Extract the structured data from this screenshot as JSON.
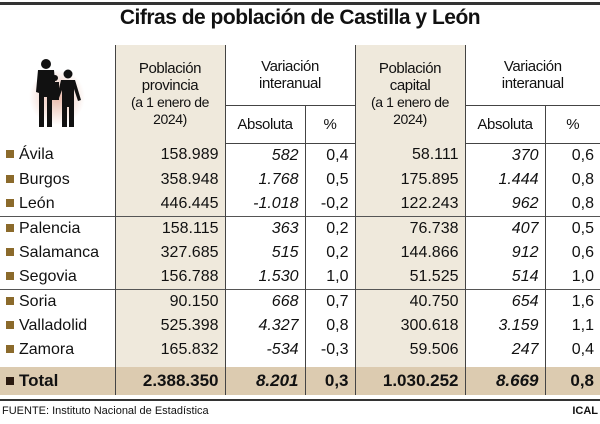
{
  "title": "Cifras de población de Castilla y León",
  "headers": {
    "pop_provincia": "Población provincia",
    "pop_provincia_sub": "(a 1 enero de 2024)",
    "variacion": "Variación interanual",
    "pop_capital": "Población capital",
    "pop_capital_sub": "(a 1 enero de 2024)",
    "absoluta": "Absoluta",
    "pct": "%"
  },
  "chart_data": {
    "type": "table",
    "columns": [
      "Población provincia (a 1 enero de 2024)",
      "Variación interanual Absoluta",
      "Variación interanual %",
      "Población capital (a 1 enero de 2024)",
      "Variación interanual Absoluta",
      "Variación interanual %"
    ],
    "rows": [
      [
        "Ávila",
        "158.989",
        "582",
        "0,4",
        "58.111",
        "370",
        "0,6"
      ],
      [
        "Burgos",
        "358.948",
        "1.768",
        "0,5",
        "175.895",
        "1.444",
        "0,8"
      ],
      [
        "León",
        "446.445",
        "-1.018",
        "-0,2",
        "122.243",
        "962",
        "0,8"
      ],
      [
        "Palencia",
        "158.115",
        "363",
        "0,2",
        "76.738",
        "407",
        "0,5"
      ],
      [
        "Salamanca",
        "327.685",
        "515",
        "0,2",
        "144.866",
        "912",
        "0,6"
      ],
      [
        "Segovia",
        "156.788",
        "1.530",
        "1,0",
        "51.525",
        "514",
        "1,0"
      ],
      [
        "Soria",
        "90.150",
        "668",
        "0,7",
        "40.750",
        "654",
        "1,6"
      ],
      [
        "Valladolid",
        "525.398",
        "4.327",
        "0,8",
        "300.618",
        "3.159",
        "1,1"
      ],
      [
        "Zamora",
        "165.832",
        "-534",
        "-0,3",
        "59.506",
        "247",
        "0,4"
      ]
    ],
    "total": [
      "Total",
      "2.388.350",
      "8.201",
      "0,3",
      "1.030.252",
      "8.669",
      "0,8"
    ]
  },
  "colors": {
    "shade": "#efe9dc",
    "total": "#dccbb0",
    "bullet": "#8b6a2b"
  },
  "icon": "people-silhouette-icon",
  "footer": {
    "source": "FUENTE: Instituto Nacional de Estadística",
    "credit": "ICAL"
  }
}
